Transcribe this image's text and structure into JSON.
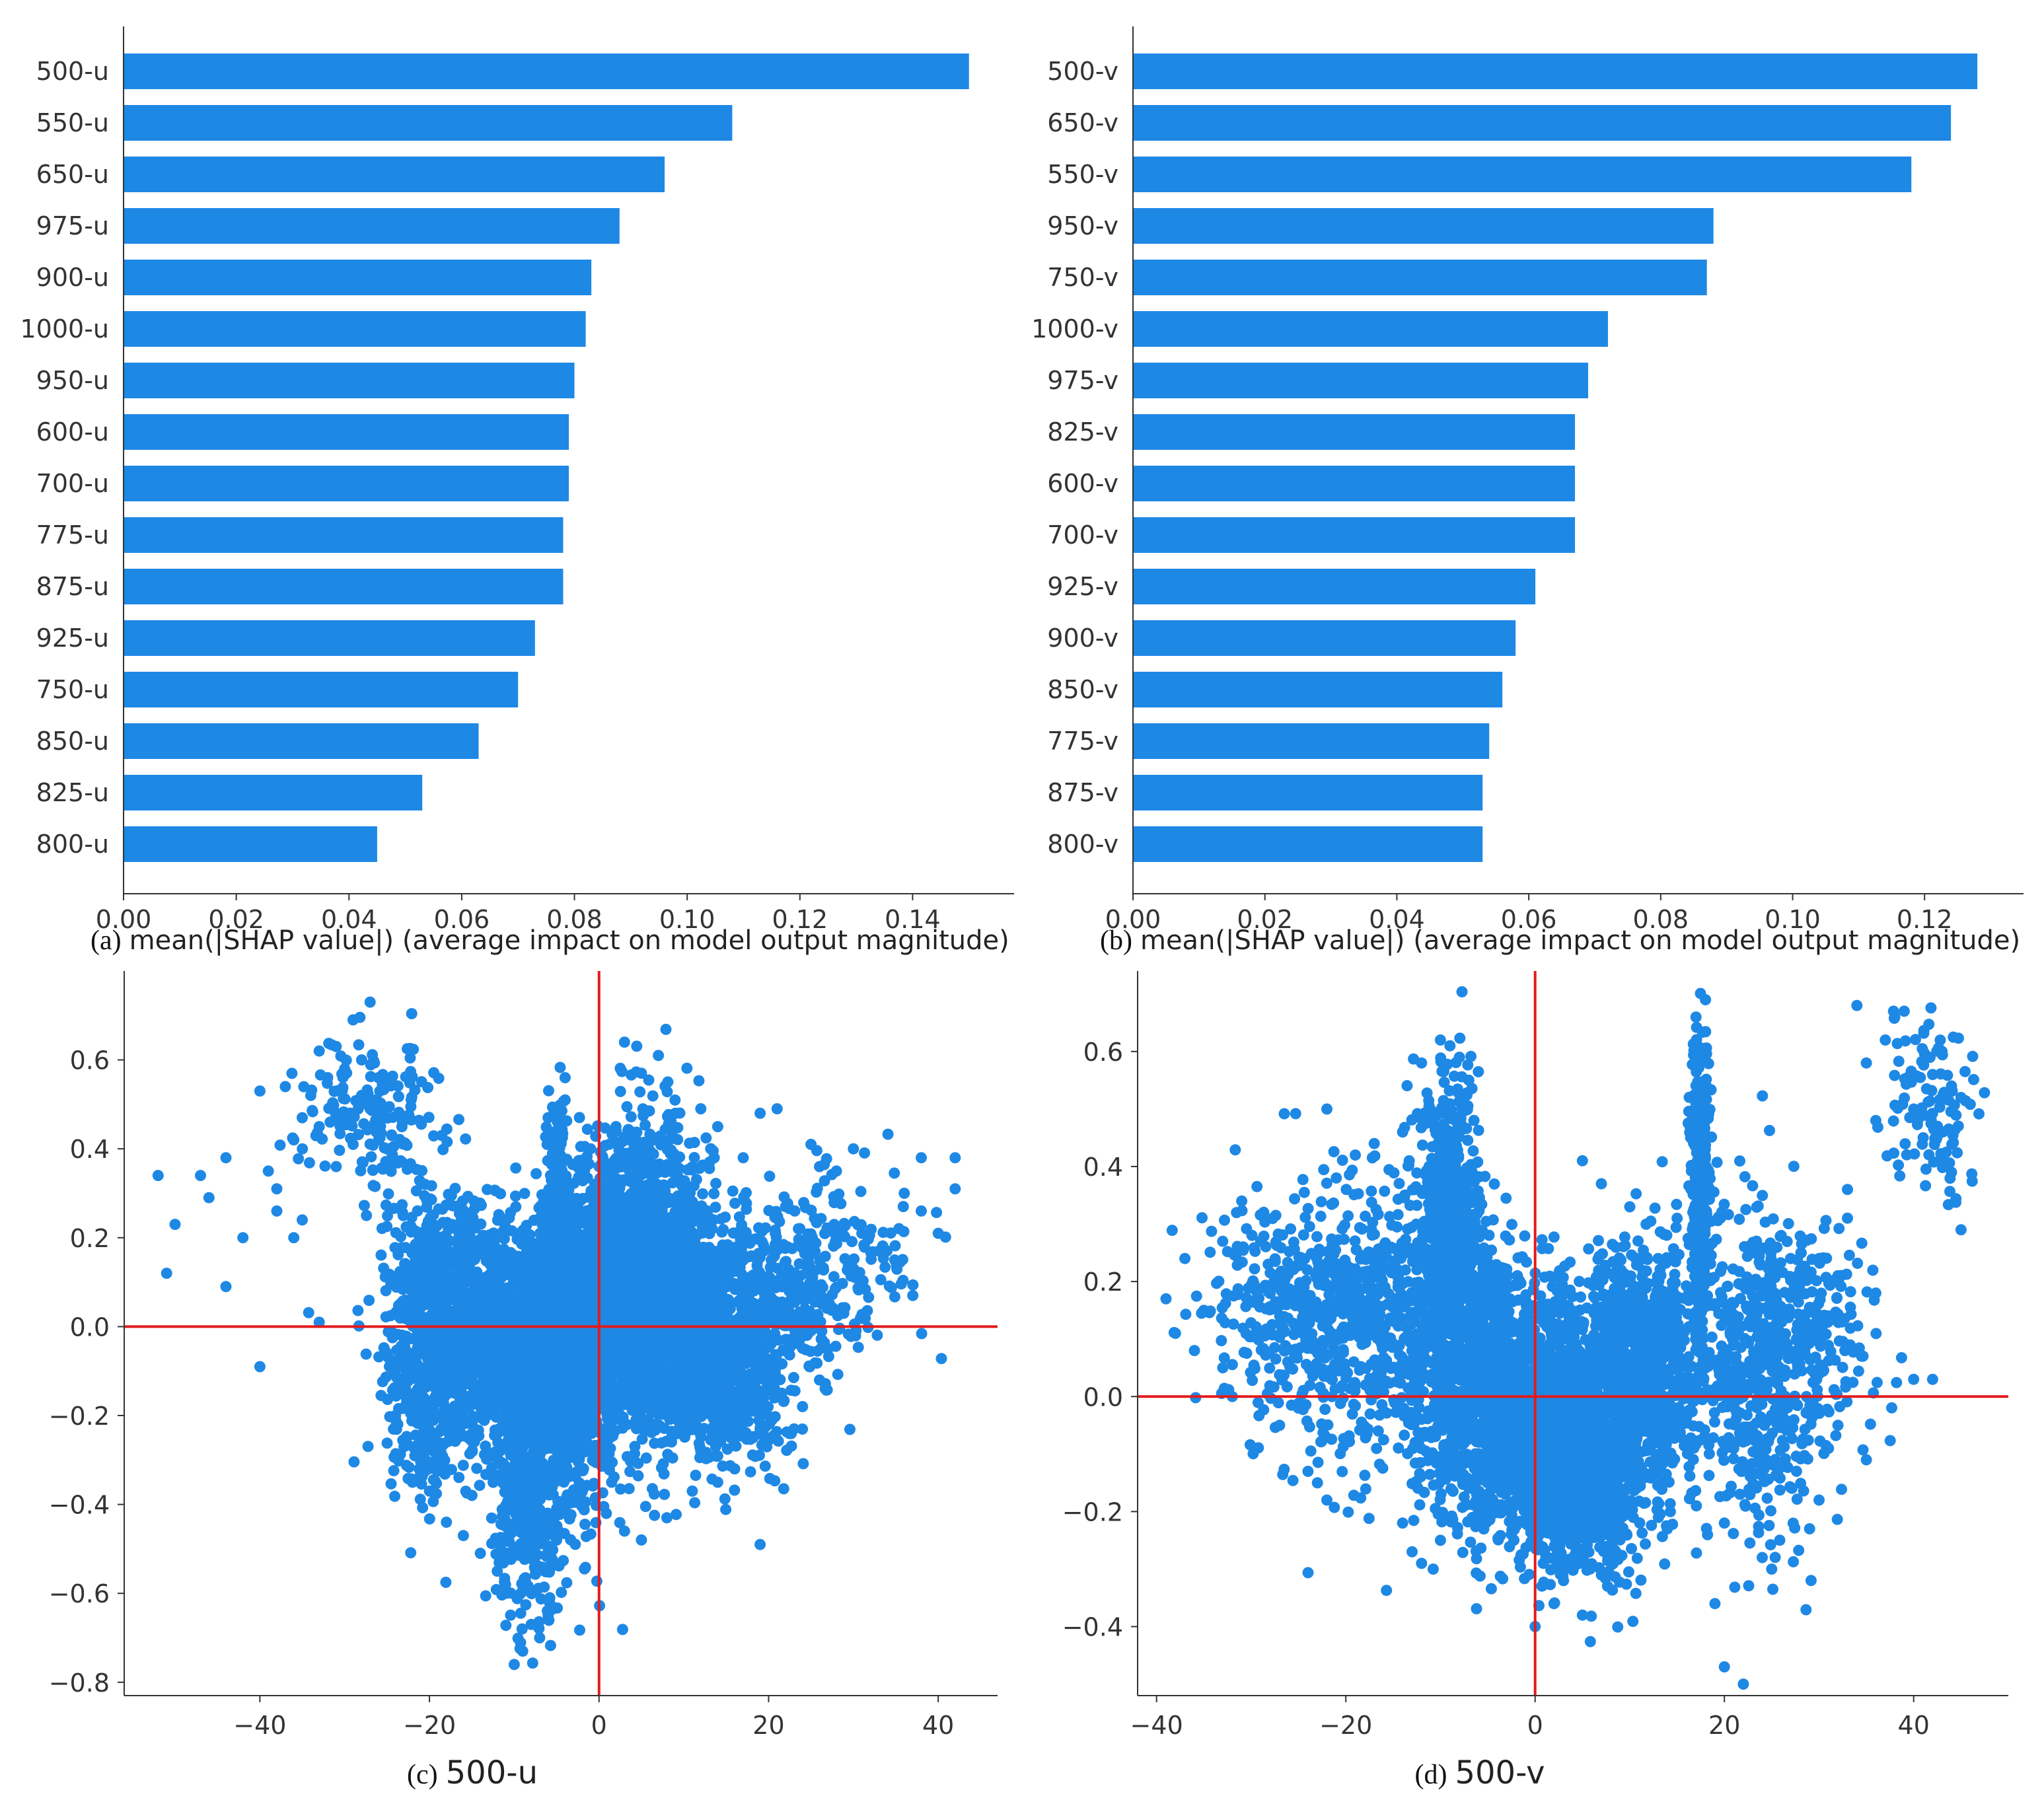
{
  "colors": {
    "bar": "#1E88E5",
    "point": "#1E88E5",
    "refline": "#E31A1C",
    "axis": "#333333"
  },
  "chart_data": [
    {
      "id": "a",
      "type": "bar",
      "orientation": "horizontal",
      "caption_prefix": "(a)",
      "xlabel": "mean(|SHAP value|) (average impact on model output magnitude)",
      "categories": [
        "500-u",
        "550-u",
        "650-u",
        "975-u",
        "900-u",
        "1000-u",
        "950-u",
        "600-u",
        "700-u",
        "775-u",
        "875-u",
        "925-u",
        "750-u",
        "850-u",
        "825-u",
        "800-u"
      ],
      "values": [
        0.15,
        0.108,
        0.096,
        0.088,
        0.083,
        0.082,
        0.08,
        0.079,
        0.079,
        0.078,
        0.078,
        0.073,
        0.07,
        0.063,
        0.053,
        0.045
      ],
      "xlim": [
        0,
        0.158
      ],
      "xticks": [
        0.0,
        0.02,
        0.04,
        0.06,
        0.08,
        0.1,
        0.12,
        0.14
      ],
      "xtick_labels": [
        "0.00",
        "0.02",
        "0.04",
        "0.06",
        "0.08",
        "0.10",
        "0.12",
        "0.14"
      ]
    },
    {
      "id": "b",
      "type": "bar",
      "orientation": "horizontal",
      "caption_prefix": "(b)",
      "xlabel": "mean(|SHAP value|) (average impact on model output magnitude)",
      "categories": [
        "500-v",
        "650-v",
        "550-v",
        "950-v",
        "750-v",
        "1000-v",
        "975-v",
        "825-v",
        "600-v",
        "700-v",
        "925-v",
        "900-v",
        "850-v",
        "775-v",
        "875-v",
        "800-v"
      ],
      "values": [
        0.128,
        0.124,
        0.118,
        0.088,
        0.087,
        0.072,
        0.069,
        0.067,
        0.067,
        0.067,
        0.061,
        0.058,
        0.056,
        0.054,
        0.053,
        0.053
      ],
      "xlim": [
        0,
        0.135
      ],
      "xticks": [
        0.0,
        0.02,
        0.04,
        0.06,
        0.08,
        0.1,
        0.12
      ],
      "xtick_labels": [
        "0.00",
        "0.02",
        "0.04",
        "0.06",
        "0.08",
        "0.10",
        "0.12"
      ]
    },
    {
      "id": "c",
      "type": "scatter",
      "caption_prefix": "(c)",
      "xlabel": "500-u",
      "xlim": [
        -56,
        47
      ],
      "ylim": [
        -0.83,
        0.8
      ],
      "xticks": [
        -40,
        -20,
        0,
        20,
        40
      ],
      "xtick_labels": [
        "−40",
        "−20",
        "0",
        "20",
        "40"
      ],
      "yticks": [
        -0.8,
        -0.6,
        -0.4,
        -0.2,
        0.0,
        0.2,
        0.4,
        0.6
      ],
      "ytick_labels": [
        "−0.8",
        "−0.6",
        "−0.4",
        "−0.2",
        "0.0",
        "0.2",
        "0.4",
        "0.6"
      ],
      "reference_lines": {
        "x": 0,
        "y": 0
      },
      "points": [
        [
          -52,
          0.34
        ],
        [
          -50,
          0.23
        ],
        [
          -51,
          0.12
        ],
        [
          -47,
          0.34
        ],
        [
          -46,
          0.29
        ],
        [
          -44,
          0.38
        ],
        [
          -44,
          0.09
        ],
        [
          -40,
          -0.09
        ],
        [
          -42,
          0.2
        ],
        [
          -40,
          0.53
        ],
        [
          -39,
          0.35
        ],
        [
          -38,
          0.31
        ],
        [
          -37,
          0.54
        ],
        [
          -36,
          0.42
        ],
        [
          -35,
          0.47
        ],
        [
          -34,
          0.52
        ],
        [
          -33,
          0.62
        ],
        [
          -33,
          0.45
        ],
        [
          -32,
          0.56
        ],
        [
          -31,
          0.63
        ],
        [
          -30,
          0.47
        ],
        [
          -30,
          0.58
        ],
        [
          -29,
          0.69
        ],
        [
          -29,
          0.41
        ],
        [
          -28,
          0.52
        ],
        [
          -28,
          0.6
        ],
        [
          -27,
          0.73
        ],
        [
          -27,
          0.49
        ],
        [
          -26,
          0.56
        ],
        [
          -26,
          0.42
        ],
        [
          -25,
          0.37
        ],
        [
          -36,
          0.2
        ],
        [
          -38,
          0.26
        ],
        [
          -33,
          0.01
        ],
        [
          -31,
          0.36
        ],
        [
          -35,
          0.24
        ],
        [
          38,
          0.38
        ],
        [
          40,
          0.21
        ],
        [
          42,
          0.38
        ],
        [
          42,
          0.31
        ],
        [
          37,
          0.07
        ],
        [
          38,
          0.26
        ],
        [
          36,
          0.3
        ],
        [
          33,
          0.17
        ],
        [
          30,
          0.4
        ],
        [
          31,
          0.21
        ],
        [
          28,
          0.35
        ],
        [
          26,
          0.36
        ],
        [
          25,
          0.41
        ],
        [
          22,
          0.27
        ],
        [
          21,
          0.49
        ],
        [
          19,
          0.48
        ],
        [
          17,
          0.38
        ],
        [
          14,
          0.45
        ],
        [
          12,
          0.49
        ],
        [
          9,
          0.48
        ],
        [
          7,
          0.61
        ],
        [
          5,
          0.57
        ],
        [
          3,
          0.64
        ],
        [
          -4,
          0.51
        ],
        [
          -5,
          0.49
        ],
        [
          -4,
          0.56
        ],
        [
          -6,
          0.47
        ],
        [
          -10,
          -0.76
        ],
        [
          -9,
          -0.73
        ],
        [
          -8,
          -0.67
        ],
        [
          -7,
          -0.7
        ],
        [
          -6,
          -0.65
        ],
        [
          -11,
          -0.6
        ],
        [
          -12,
          -0.55
        ],
        [
          -14,
          -0.51
        ],
        [
          -16,
          -0.47
        ],
        [
          -18,
          -0.44
        ],
        [
          -20,
          -0.37
        ],
        [
          -22,
          -0.35
        ],
        [
          -23,
          -0.27
        ],
        [
          -24,
          -0.2
        ],
        [
          3,
          -0.46
        ],
        [
          5,
          -0.48
        ],
        [
          8,
          -0.43
        ],
        [
          11,
          -0.37
        ],
        [
          12,
          -0.28
        ],
        [
          19,
          -0.49
        ],
        [
          14,
          -0.35
        ],
        [
          16,
          -0.32
        ],
        [
          23,
          -0.23
        ],
        [
          24,
          -0.18
        ],
        [
          26,
          -0.12
        ],
        [
          27,
          -0.05
        ],
        [
          -1,
          0.4
        ],
        [
          0,
          0.36
        ],
        [
          1,
          0.33
        ],
        [
          2,
          0.45
        ]
      ],
      "clusters": [
        {
          "cx": -8,
          "cy": -0.03,
          "sx": 6.5,
          "sy": 0.13,
          "n": 1900
        },
        {
          "cx": -8,
          "cy": -0.38,
          "sx": 2.0,
          "sy": 0.13,
          "n": 420
        },
        {
          "cx": -5,
          "cy": 0.22,
          "sx": 0.6,
          "sy": 0.13,
          "n": 300
        },
        {
          "cx": -3,
          "cy": -0.1,
          "sx": 3.5,
          "sy": 0.17,
          "n": 650
        },
        {
          "cx": 5,
          "cy": 0.14,
          "sx": 4.0,
          "sy": 0.16,
          "n": 1500
        },
        {
          "cx": 10,
          "cy": 0.0,
          "sx": 5.0,
          "sy": 0.12,
          "n": 1100
        },
        {
          "cx": -18,
          "cy": 0.08,
          "sx": 3.5,
          "sy": 0.13,
          "n": 500
        },
        {
          "cx": -27,
          "cy": 0.48,
          "sx": 4.0,
          "sy": 0.08,
          "n": 160
        },
        {
          "cx": -20,
          "cy": -0.2,
          "sx": 2.5,
          "sy": 0.1,
          "n": 220
        },
        {
          "cx": 17,
          "cy": -0.14,
          "sx": 3.0,
          "sy": 0.1,
          "n": 260
        },
        {
          "cx": 22,
          "cy": 0.08,
          "sx": 4.0,
          "sy": 0.1,
          "n": 260
        },
        {
          "cx": 30,
          "cy": 0.16,
          "sx": 5.0,
          "sy": 0.1,
          "n": 120
        }
      ]
    },
    {
      "id": "d",
      "type": "scatter",
      "caption_prefix": "(d)",
      "xlabel": "500-v",
      "xlim": [
        -42,
        50
      ],
      "ylim": [
        -0.52,
        0.74
      ],
      "xticks": [
        -40,
        -20,
        0,
        20,
        40
      ],
      "xtick_labels": [
        "−40",
        "−20",
        "0",
        "20",
        "40"
      ],
      "yticks": [
        -0.4,
        -0.2,
        0.0,
        0.2,
        0.4,
        0.6
      ],
      "ytick_labels": [
        "−0.4",
        "−0.2",
        "0.0",
        "0.2",
        "0.4",
        "0.6"
      ],
      "reference_lines": {
        "x": 0,
        "y": 0
      },
      "points": [
        [
          -39,
          0.17
        ],
        [
          -38,
          0.11
        ],
        [
          -37,
          0.24
        ],
        [
          -36,
          0.08
        ],
        [
          -35,
          0.15
        ],
        [
          -33,
          0.05
        ],
        [
          -32,
          0.0
        ],
        [
          -31,
          0.34
        ],
        [
          -29,
          0.27
        ],
        [
          -27,
          -0.05
        ],
        [
          -25,
          -0.02
        ],
        [
          -24,
          -0.13
        ],
        [
          -23,
          -0.15
        ],
        [
          -22,
          0.5
        ],
        [
          -22,
          -0.18
        ],
        [
          -21,
          0.38
        ],
        [
          -19,
          0.42
        ],
        [
          -17,
          0.44
        ],
        [
          -14,
          0.46
        ],
        [
          -14,
          -0.22
        ],
        [
          -13,
          -0.27
        ],
        [
          -12,
          -0.29
        ],
        [
          -10,
          -0.25
        ],
        [
          -12,
          0.58
        ],
        [
          -10,
          0.62
        ],
        [
          -9,
          0.61
        ],
        [
          -8,
          0.59
        ],
        [
          -7,
          0.55
        ],
        [
          0,
          -0.4
        ],
        [
          2,
          -0.36
        ],
        [
          3,
          -0.32
        ],
        [
          5,
          -0.38
        ],
        [
          7,
          -0.31
        ],
        [
          7,
          0.37
        ],
        [
          5,
          0.41
        ],
        [
          10,
          0.33
        ],
        [
          13,
          0.24
        ],
        [
          15,
          0.31
        ],
        [
          18,
          0.69
        ],
        [
          17,
          0.66
        ],
        [
          18,
          0.6
        ],
        [
          19,
          -0.36
        ],
        [
          20,
          -0.22
        ],
        [
          20,
          -0.47
        ],
        [
          22,
          -0.5
        ],
        [
          24,
          -0.28
        ],
        [
          25,
          -0.3
        ],
        [
          26,
          0.28
        ],
        [
          27,
          0.24
        ],
        [
          28,
          0.22
        ],
        [
          30,
          0.24
        ],
        [
          31,
          0.14
        ],
        [
          32,
          0.21
        ],
        [
          33,
          0.36
        ],
        [
          34,
          0.68
        ],
        [
          35,
          0.58
        ],
        [
          35,
          -0.11
        ],
        [
          36,
          0.48
        ],
        [
          37,
          0.62
        ],
        [
          38,
          0.66
        ],
        [
          39,
          0.67
        ],
        [
          40,
          0.5
        ],
        [
          41,
          0.45
        ],
        [
          42,
          0.56
        ],
        [
          43,
          0.6
        ],
        [
          43,
          0.41
        ],
        [
          44,
          0.54
        ],
        [
          45,
          0.52
        ],
        [
          45,
          0.29
        ],
        [
          44,
          0.39
        ],
        [
          40,
          0.03
        ],
        [
          42,
          0.03
        ],
        [
          36,
          0.18
        ],
        [
          30,
          -0.18
        ],
        [
          31,
          -0.09
        ],
        [
          29,
          -0.23
        ],
        [
          26,
          0.01
        ],
        [
          32,
          -0.05
        ]
      ],
      "clusters": [
        {
          "cx": -3,
          "cy": 0.0,
          "sx": 5.0,
          "sy": 0.11,
          "n": 1400
        },
        {
          "cx": -9,
          "cy": 0.28,
          "sx": 1.6,
          "sy": 0.13,
          "n": 750
        },
        {
          "cx": -18,
          "cy": 0.14,
          "sx": 5.5,
          "sy": 0.12,
          "n": 650
        },
        {
          "cx": 4,
          "cy": -0.12,
          "sx": 4.0,
          "sy": 0.09,
          "n": 1300
        },
        {
          "cx": 11,
          "cy": 0.05,
          "sx": 3.5,
          "sy": 0.11,
          "n": 900
        },
        {
          "cx": 17.5,
          "cy": 0.35,
          "sx": 0.5,
          "sy": 0.14,
          "n": 350
        },
        {
          "cx": 24,
          "cy": 0.05,
          "sx": 3.5,
          "sy": 0.14,
          "n": 550
        },
        {
          "cx": 42,
          "cy": 0.5,
          "sx": 2.5,
          "sy": 0.08,
          "n": 110
        },
        {
          "cx": 31,
          "cy": 0.1,
          "sx": 3.0,
          "sy": 0.09,
          "n": 120
        },
        {
          "cx": -27,
          "cy": 0.15,
          "sx": 4.0,
          "sy": 0.1,
          "n": 160
        }
      ]
    }
  ]
}
